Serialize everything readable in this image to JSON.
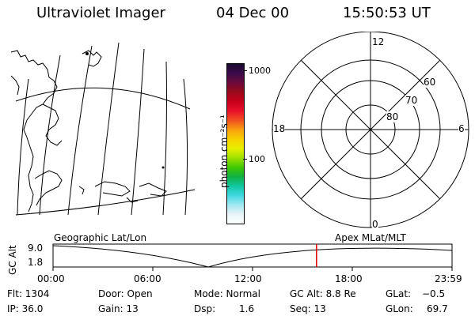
{
  "header": {
    "instrument": "Ultraviolet Imager",
    "date": "04 Dec 00",
    "time": "15:50:53 UT"
  },
  "colorbar": {
    "unit_label": "photon cm⁻²s⁻¹",
    "tick_labels": [
      "1000",
      "100"
    ],
    "colors": [
      "#1a0a2e",
      "#3a0a4a",
      "#6a0a3a",
      "#9a0a1a",
      "#c8001a",
      "#e8102a",
      "#f05020",
      "#f8a010",
      "#f8d000",
      "#e8f000",
      "#a0e000",
      "#40c800",
      "#10b040",
      "#10c8a0",
      "#40d8e0",
      "#a0e8f0",
      "#e8f4f8",
      "#ffffff"
    ]
  },
  "polar_plot": {
    "mlt_labels": [
      "12",
      "18",
      "6",
      "0"
    ],
    "lat_labels": [
      "60",
      "70",
      "80"
    ]
  },
  "map_label": "Geographic Lat/Lon",
  "polar_label": "Apex MLat/MLT",
  "altitude_plot": {
    "ylabel": "GC Alt",
    "ytick_labels": [
      "9.0",
      "1.8"
    ],
    "xtick_labels": [
      "00:00",
      "06:00",
      "12:00",
      "18:00",
      "23:59"
    ],
    "marker_color": "#e00000",
    "marker_time_hours": 15.848
  },
  "footer": {
    "flt": "Flt: 1304",
    "ip": "IP: 36.0",
    "door": "Door: Open",
    "gain": "Gain: 13",
    "mode": "Mode: Normal",
    "dsp_label": "Dsp:",
    "dsp_value": "1.6",
    "gc_alt": "GC Alt: 8.8 Re",
    "seq": "Seq: 13",
    "glat_label": "GLat:",
    "glat_value": "−0.5",
    "glon_label": "GLon:",
    "glon_value": "69.7"
  }
}
